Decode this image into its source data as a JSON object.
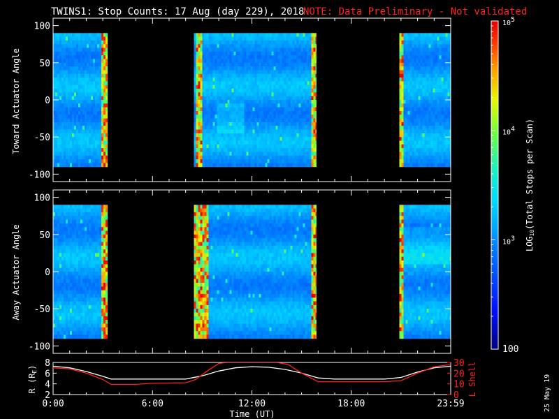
{
  "header": {
    "title": "TWINS1: Stop Counts: 17 Aug (day 229), 2018",
    "note": "NOTE: Data Preliminary - Not validated"
  },
  "stamp": "25 May 19",
  "colors": {
    "note": "#ff2020",
    "shell_line": "#ff2020",
    "r_line": "#ffffff",
    "axis": "#ffffff",
    "background": "#000000"
  },
  "chart_data": [
    {
      "type": "heatmap",
      "panel": "top",
      "ylabel": "Toward Actuator Angle",
      "ylim": [
        -110,
        110
      ],
      "yticks": [
        -100,
        -50,
        0,
        50,
        100
      ],
      "xlim": [
        0,
        24
      ],
      "angle_range": [
        -90,
        90
      ],
      "color_scale": "log10",
      "data_intervals": [
        [
          0,
          3.3
        ],
        [
          8.5,
          15.9
        ],
        [
          20.9,
          24
        ]
      ],
      "enhanced_bands": [
        [
          2.85,
          3.25
        ],
        [
          8.55,
          9.0
        ],
        [
          15.55,
          15.9
        ],
        [
          20.9,
          21.1
        ]
      ]
    },
    {
      "type": "heatmap",
      "panel": "bottom",
      "ylabel": "Away Actuator Angle",
      "ylim": [
        -110,
        110
      ],
      "yticks": [
        -100,
        -50,
        0,
        50,
        100
      ],
      "xlim": [
        0,
        24
      ],
      "angle_range": [
        -90,
        90
      ],
      "color_scale": "log10",
      "data_intervals": [
        [
          0,
          3.3
        ],
        [
          8.5,
          15.9
        ],
        [
          20.9,
          24
        ]
      ],
      "enhanced_bands": [
        [
          2.85,
          3.25
        ],
        [
          8.5,
          9.3
        ],
        [
          15.55,
          15.9
        ],
        [
          20.9,
          21.1
        ]
      ]
    },
    {
      "type": "line",
      "panel": "ephemeris",
      "xlabel": "Time (UT)",
      "xtick_labels": [
        "0:00",
        "6:00",
        "12:00",
        "18:00",
        "23:59"
      ],
      "xticks": [
        0,
        6,
        12,
        18,
        24
      ],
      "ylabel_left": "R (R",
      "ylabel_left_sub": "E",
      "ylabel_left_close": ")",
      "ylim_left": [
        2,
        8
      ],
      "yticks_left": [
        2,
        4,
        6,
        8
      ],
      "ylabel_right": "L Shell",
      "ylim_right": [
        0,
        30
      ],
      "yticks_right": [
        0,
        10,
        20,
        30
      ],
      "series": [
        {
          "axis": "left",
          "x": [
            0,
            1,
            2,
            3,
            3.5,
            6,
            8,
            9,
            10,
            11,
            12,
            13,
            14,
            15,
            16,
            17,
            18,
            20,
            21,
            22,
            23,
            24
          ],
          "y": [
            7.3,
            7.0,
            6.3,
            5.4,
            4.9,
            4.9,
            4.9,
            5.5,
            6.4,
            7.0,
            7.2,
            7.1,
            6.7,
            6.0,
            5.1,
            4.9,
            4.9,
            4.9,
            5.2,
            6.2,
            7.0,
            7.3
          ]
        },
        {
          "axis": "right",
          "x": [
            0,
            1,
            2,
            3,
            3.5,
            5,
            6,
            8,
            8.6,
            9.3,
            10,
            10.5,
            13.5,
            14.2,
            15,
            16,
            18,
            20,
            21,
            22,
            23,
            24
          ],
          "y": [
            25,
            24,
            20,
            14,
            9.5,
            9.5,
            10.5,
            11,
            14,
            22,
            29,
            30,
            30,
            28,
            20,
            12,
            12,
            12,
            13,
            20,
            26,
            28
          ]
        }
      ]
    }
  ],
  "colorbar": {
    "label_main": "LOG",
    "label_sub": "10",
    "label_rest": "(Total Stops per Scan)",
    "tick_labels": [
      "100",
      "10",
      "10",
      "10"
    ],
    "tick_exponents": [
      "",
      "3",
      "4",
      "5"
    ],
    "range": [
      100,
      100000
    ]
  }
}
